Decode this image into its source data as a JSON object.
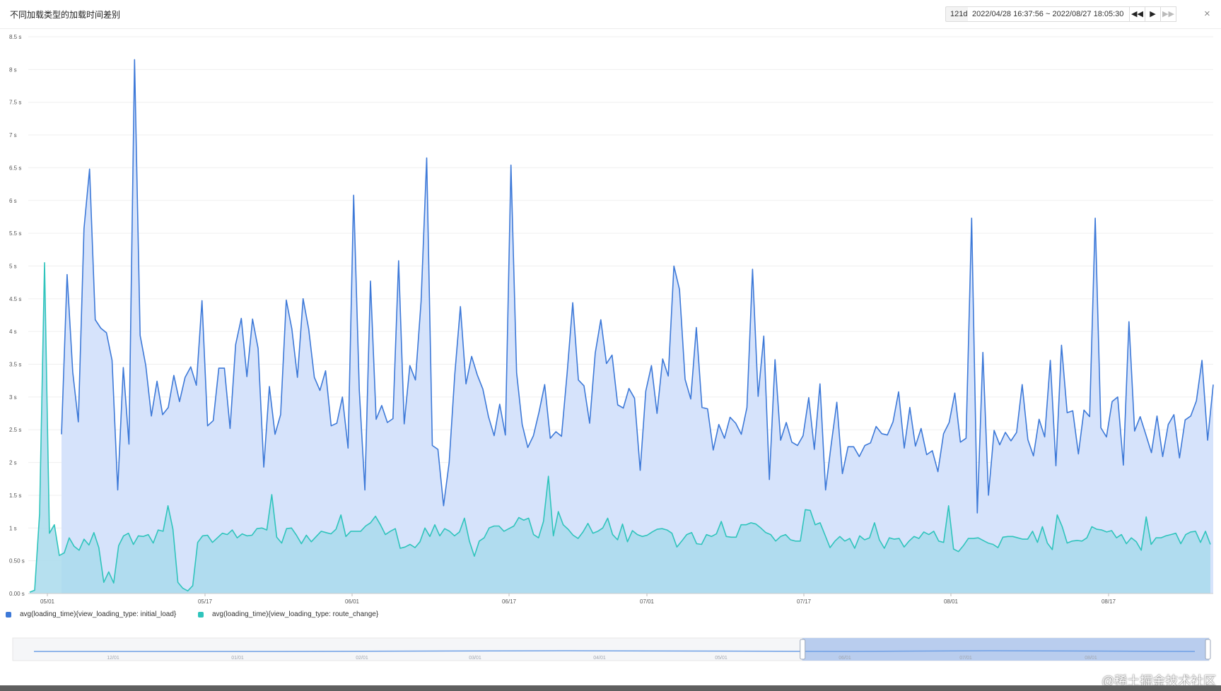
{
  "header": {
    "title": "不同加载类型的加载时间差别",
    "range_days": "121d",
    "range_text": "2022/04/28 16:37:56 ~ 2022/08/27 18:05:30",
    "controls": [
      "◀◀",
      "▶",
      "▶▶"
    ],
    "close": "×"
  },
  "colors": {
    "initial_load_line": "#3d79d8",
    "initial_load_fill": "#d6e3fb",
    "route_change_line": "#2fc4bc",
    "route_change_fill": "#a9dbec",
    "zoom_selected": "#b9cdee"
  },
  "chart_data": {
    "type": "area",
    "ylim": [
      0,
      8.5
    ],
    "y_ticks": [
      "0.00 s",
      "0.50 s",
      "1 s",
      "1.5 s",
      "2 s",
      "2.5 s",
      "3 s",
      "3.5 s",
      "4 s",
      "4.5 s",
      "5 s",
      "5.5 s",
      "6 s",
      "6.5 s",
      "7 s",
      "7.5 s",
      "8 s",
      "8.5 s"
    ],
    "x_ticks": [
      "05/01",
      "05/17",
      "06/01",
      "06/17",
      "07/01",
      "07/17",
      "08/01",
      "08/17"
    ],
    "legend_position": "bottom-left",
    "grid": true,
    "series": [
      {
        "name": "avg(loading_time){view_loading_type: initial_load}",
        "values": [
          2.43,
          4.87,
          3.38,
          2.62,
          5.57,
          6.48,
          4.18,
          4.05,
          3.98,
          3.56,
          1.58,
          3.45,
          2.28,
          8.15,
          3.94,
          3.48,
          2.71,
          3.24,
          2.73,
          2.84,
          3.33,
          2.93,
          3.3,
          3.46,
          3.18,
          4.47,
          2.56,
          2.64,
          3.44,
          3.44,
          2.52,
          3.8,
          4.2,
          3.31,
          4.19,
          3.74,
          1.93,
          3.16,
          2.43,
          2.73,
          4.48,
          4.04,
          3.3,
          4.5,
          4.04,
          3.3,
          3.1,
          3.4,
          2.56,
          2.6,
          3.0,
          2.22,
          6.08,
          3.1,
          1.58,
          4.77,
          2.66,
          2.87,
          2.61,
          2.67,
          5.08,
          2.59,
          3.48,
          3.26,
          4.46,
          6.65,
          2.26,
          2.2,
          1.34,
          2.0,
          3.34,
          4.38,
          3.2,
          3.62,
          3.34,
          3.12,
          2.7,
          2.41,
          2.89,
          2.42,
          6.54,
          3.37,
          2.58,
          2.23,
          2.41,
          2.77,
          3.19,
          2.37,
          2.47,
          2.4,
          3.37,
          4.44,
          3.26,
          3.17,
          2.6,
          3.67,
          4.18,
          3.51,
          3.64,
          2.88,
          2.83,
          3.13,
          2.98,
          1.88,
          3.09,
          3.48,
          2.75,
          3.58,
          3.32,
          5.0,
          4.64,
          3.27,
          2.97,
          4.06,
          2.84,
          2.82,
          2.19,
          2.58,
          2.37,
          2.69,
          2.6,
          2.43,
          2.84,
          4.95,
          3.01,
          3.93,
          1.74,
          3.57,
          2.34,
          2.61,
          2.31,
          2.26,
          2.41,
          2.99,
          2.2,
          3.2,
          1.58,
          2.27,
          2.92,
          1.83,
          2.24,
          2.24,
          2.09,
          2.26,
          2.3,
          2.55,
          2.44,
          2.42,
          2.62,
          3.08,
          2.22,
          2.84,
          2.25,
          2.52,
          2.12,
          2.18,
          1.86,
          2.44,
          2.61,
          3.06,
          2.31,
          2.37,
          5.73,
          1.23,
          3.68,
          1.5,
          2.49,
          2.27,
          2.46,
          2.33,
          2.46,
          3.19,
          2.35,
          2.1,
          2.66,
          2.39,
          3.56,
          1.95,
          3.79,
          2.76,
          2.79,
          2.13,
          2.8,
          2.7,
          5.73,
          2.53,
          2.39,
          2.93,
          3.0,
          1.96,
          4.15,
          2.48,
          2.7,
          2.43,
          2.15,
          2.71,
          2.09,
          2.58,
          2.73,
          2.07,
          2.65,
          2.71,
          2.94,
          3.56,
          2.34,
          3.19
        ],
        "color": "#3d79d8"
      },
      {
        "name": "avg(loading_time){view_loading_type: route_change}",
        "values": [
          0.02,
          0.05,
          1.22,
          5.05,
          0.92,
          1.05,
          0.58,
          0.62,
          0.85,
          0.72,
          0.66,
          0.83,
          0.74,
          0.93,
          0.7,
          0.17,
          0.33,
          0.16,
          0.73,
          0.88,
          0.92,
          0.75,
          0.88,
          0.87,
          0.9,
          0.77,
          0.97,
          0.95,
          1.34,
          0.98,
          0.17,
          0.08,
          0.04,
          0.12,
          0.78,
          0.88,
          0.89,
          0.78,
          0.85,
          0.92,
          0.9,
          0.97,
          0.85,
          0.91,
          0.88,
          0.89,
          0.99,
          1.0,
          0.97,
          1.51,
          0.86,
          0.77,
          0.99,
          1.0,
          0.89,
          0.76,
          0.89,
          0.79,
          0.87,
          0.95,
          0.93,
          0.91,
          0.98,
          1.2,
          0.87,
          0.95,
          0.95,
          0.95,
          1.03,
          1.08,
          1.18,
          1.05,
          0.9,
          0.95,
          0.99,
          0.69,
          0.71,
          0.75,
          0.7,
          0.79,
          1.0,
          0.87,
          1.05,
          0.88,
          0.99,
          0.95,
          0.88,
          0.94,
          1.15,
          0.8,
          0.57,
          0.8,
          0.85,
          1.0,
          1.03,
          1.03,
          0.95,
          0.99,
          1.03,
          1.16,
          1.12,
          1.15,
          0.9,
          0.85,
          1.1,
          1.79,
          0.88,
          1.25,
          1.05,
          0.98,
          0.89,
          0.84,
          0.94,
          1.07,
          0.92,
          0.95,
          1.0,
          1.15,
          0.9,
          0.82,
          1.06,
          0.79,
          0.96,
          0.9,
          0.87,
          0.89,
          0.94,
          0.98,
          0.99,
          0.97,
          0.92,
          0.71,
          0.8,
          0.9,
          0.93,
          0.76,
          0.75,
          0.9,
          0.87,
          0.91,
          1.1,
          0.87,
          0.86,
          0.86,
          1.05,
          1.05,
          1.08,
          1.06,
          1.0,
          0.93,
          0.9,
          0.8,
          0.87,
          0.9,
          0.82,
          0.8,
          0.8,
          1.28,
          1.27,
          1.05,
          1.08,
          0.89,
          0.7,
          0.8,
          0.87,
          0.8,
          0.84,
          0.69,
          0.88,
          0.82,
          0.85,
          1.08,
          0.82,
          0.69,
          0.85,
          0.83,
          0.84,
          0.71,
          0.8,
          0.87,
          0.84,
          0.94,
          0.9,
          0.95,
          0.8,
          0.78,
          1.34,
          0.68,
          0.64,
          0.73,
          0.84,
          0.84,
          0.85,
          0.81,
          0.77,
          0.75,
          0.7,
          0.86,
          0.87,
          0.87,
          0.85,
          0.83,
          0.83,
          0.95,
          0.78,
          1.02,
          0.77,
          0.67,
          1.2,
          1.02,
          0.77,
          0.8,
          0.81,
          0.8,
          0.85,
          1.02,
          0.98,
          0.97,
          0.94,
          0.96,
          0.85,
          0.9,
          0.76,
          0.85,
          0.79,
          0.66,
          1.17,
          0.75,
          0.85,
          0.85,
          0.88,
          0.9,
          0.92,
          0.76,
          0.9,
          0.94,
          0.95,
          0.78,
          0.95,
          0.75
        ],
        "color": "#2fc4bc"
      }
    ]
  },
  "zoom": {
    "ticks": [
      "12/01",
      "01/01",
      "02/01",
      "03/01",
      "04/01",
      "05/01",
      "06/01",
      "07/01",
      "08/01"
    ],
    "selection_start_fraction": 0.66,
    "selection_end_fraction": 1.0
  },
  "watermark": "@稀土掘金技术社区"
}
